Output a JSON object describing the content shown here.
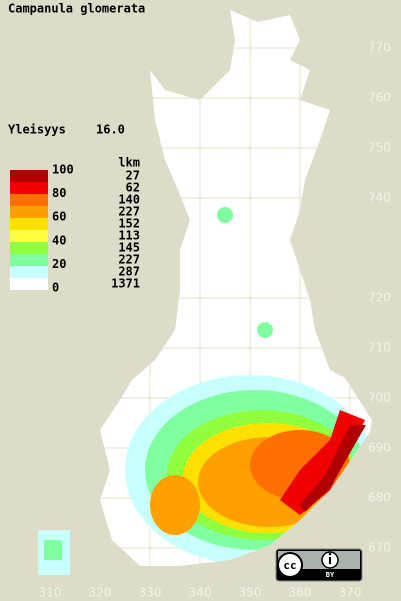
{
  "title": "Campanula glomerata",
  "index": {
    "label": "Yleisyys",
    "value": "16.0"
  },
  "legend": {
    "count_header": "lkm",
    "classes": [
      {
        "color": "#b00000",
        "count": 27
      },
      {
        "color": "#f00000",
        "count": 62
      },
      {
        "color": "#ff7000",
        "count": 140
      },
      {
        "color": "#ffa000",
        "count": 227
      },
      {
        "color": "#ffe000",
        "count": 152
      },
      {
        "color": "#ffff40",
        "count": 113
      },
      {
        "color": "#90ff40",
        "count": 145
      },
      {
        "color": "#80ffa0",
        "count": 227
      },
      {
        "color": "#c8ffff",
        "count": 287
      },
      {
        "color": "#ffffff",
        "count": 1371
      }
    ],
    "scale_labels": [
      100,
      80,
      60,
      40,
      20,
      0
    ]
  },
  "grid": {
    "north": [
      770,
      760,
      750,
      740,
      720,
      710,
      700,
      690,
      680,
      670
    ],
    "east": [
      310,
      320,
      330,
      340,
      350,
      360,
      370
    ]
  },
  "license": {
    "cc": "cc",
    "by": "BY"
  }
}
